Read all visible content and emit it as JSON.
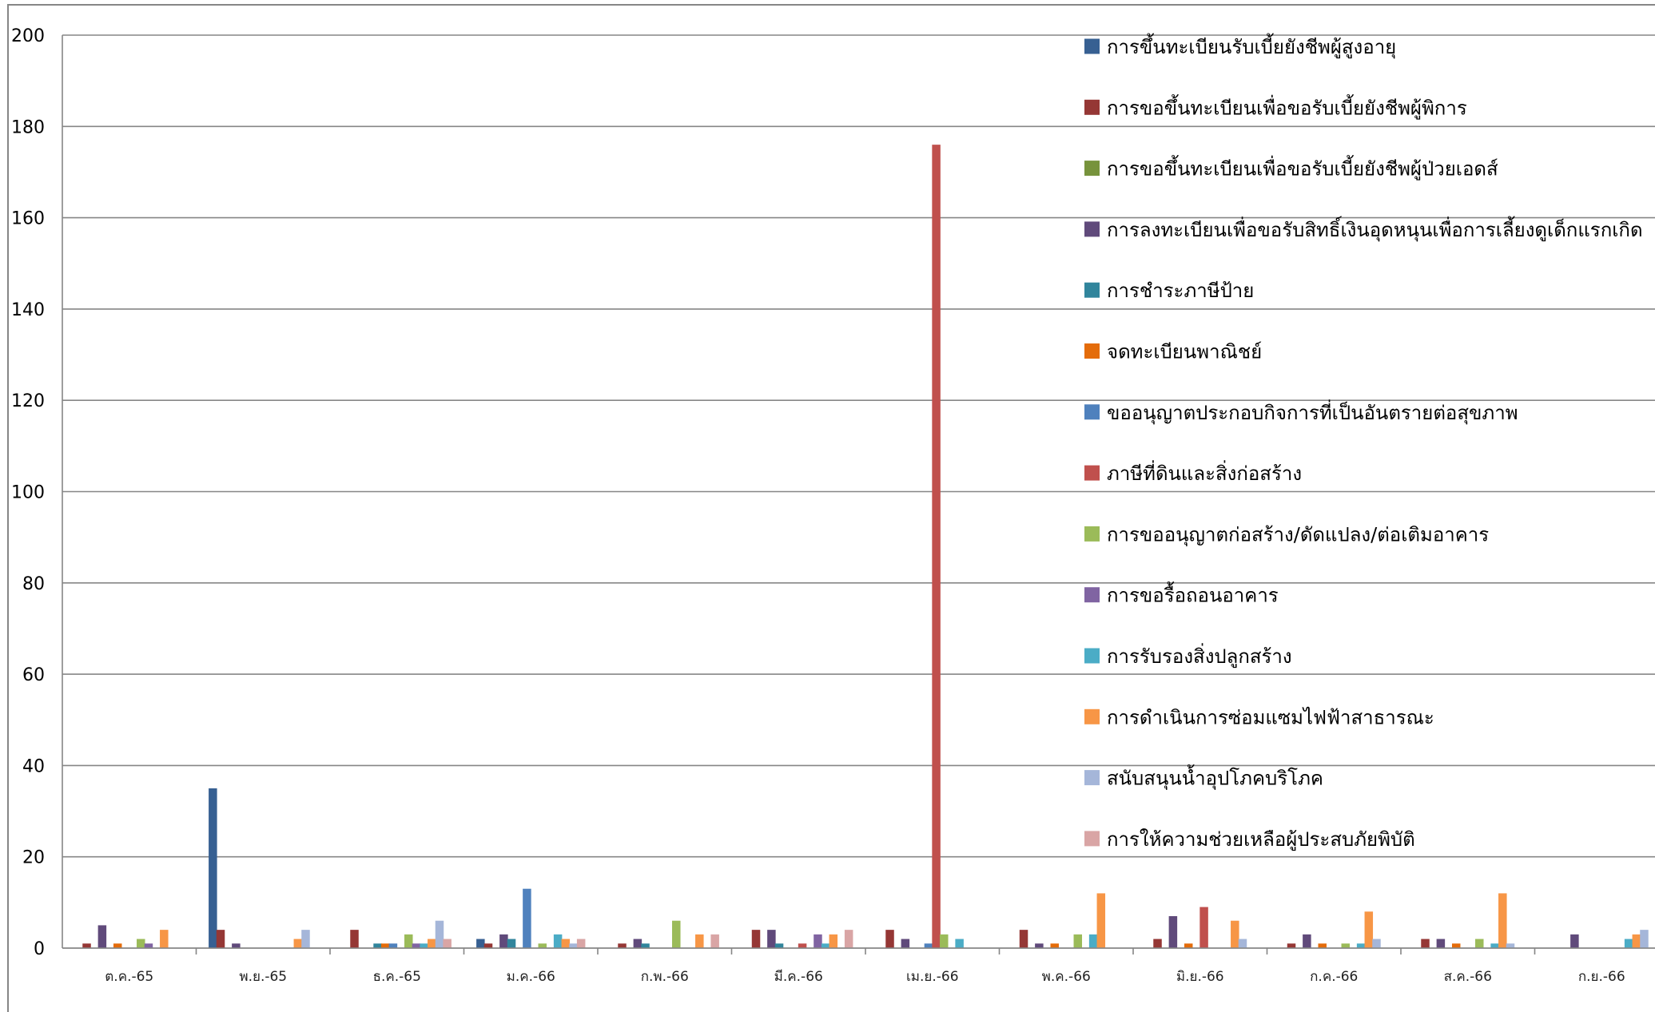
{
  "chart_data": {
    "type": "bar",
    "title": "",
    "xlabel": "",
    "ylabel": "",
    "ylim": [
      0,
      200
    ],
    "yticks": [
      0,
      20,
      40,
      60,
      80,
      100,
      120,
      140,
      160,
      180,
      200
    ],
    "grid": true,
    "legend_position": "right",
    "categories": [
      "ต.ค.-65",
      "พ.ย.-65",
      "ธ.ค.-65",
      "ม.ค.-66",
      "ก.พ.-66",
      "มี.ค.-66",
      "เม.ย.-66",
      "พ.ค.-66",
      "มิ.ย.-66",
      "ก.ค.-66",
      "ส.ค.-66",
      "ก.ย.-66"
    ],
    "series": [
      {
        "name": "การขึ้นทะเบียนรับเบี้ยยังชีพผู้สูงอายุ",
        "color": "#376092",
        "values": [
          0,
          35,
          0,
          2,
          0,
          0,
          0,
          0,
          0,
          0,
          0,
          0
        ]
      },
      {
        "name": "การขอขึ้นทะเบียนเพื่อขอรับเบี้ยยังชีพผู้พิการ",
        "color": "#953735",
        "values": [
          1,
          4,
          4,
          1,
          1,
          4,
          4,
          4,
          2,
          1,
          2,
          0
        ]
      },
      {
        "name": "การขอขึ้นทะเบียนเพื่อขอรับเบี้ยยังชีพผู้ป่วยเอดส์",
        "color": "#77933C",
        "values": [
          0,
          0,
          0,
          0,
          0,
          0,
          0,
          0,
          0,
          0,
          0,
          0
        ]
      },
      {
        "name": "การลงทะเบียนเพื่อขอรับสิทธิ์เงินอุดหนุนเพื่อการเลี้ยงดูเด็กแรกเกิด",
        "color": "#604A7B",
        "values": [
          5,
          1,
          0,
          3,
          2,
          4,
          2,
          1,
          7,
          3,
          2,
          3
        ]
      },
      {
        "name": "การชำระภาษีป้าย",
        "color": "#31859C",
        "values": [
          0,
          0,
          1,
          2,
          1,
          1,
          0,
          0,
          0,
          0,
          0,
          0
        ]
      },
      {
        "name": "จดทะเบียนพาณิชย์",
        "color": "#E46C0A",
        "values": [
          1,
          0,
          1,
          0,
          0,
          0,
          0,
          1,
          1,
          1,
          1,
          0
        ]
      },
      {
        "name": "ขออนุญาตประกอบกิจการที่เป็นอันตรายต่อสุขภาพ",
        "color": "#4F81BD",
        "values": [
          0,
          0,
          1,
          13,
          0,
          0,
          1,
          0,
          0,
          0,
          0,
          0
        ]
      },
      {
        "name": "ภาษีที่ดินและสิ่งก่อสร้าง",
        "color": "#C0504D",
        "values": [
          0,
          0,
          0,
          0,
          0,
          1,
          176,
          0,
          9,
          0,
          0,
          0
        ]
      },
      {
        "name": "การขออนุญาตก่อสร้าง/ดัดแปลง/ต่อเติมอาคาร",
        "color": "#9BBB59",
        "values": [
          2,
          0,
          3,
          1,
          6,
          0,
          3,
          3,
          0,
          1,
          2,
          0
        ]
      },
      {
        "name": "การขอรื้อถอนอาคาร",
        "color": "#8064A2",
        "values": [
          1,
          0,
          1,
          0,
          0,
          3,
          0,
          0,
          0,
          0,
          0,
          0
        ]
      },
      {
        "name": "การรับรองสิ่งปลูกสร้าง",
        "color": "#4BACC6",
        "values": [
          0,
          0,
          1,
          3,
          0,
          1,
          2,
          3,
          0,
          1,
          1,
          2
        ]
      },
      {
        "name": "การดำเนินการซ่อมแซมไฟฟ้าสาธารณะ",
        "color": "#F79646",
        "values": [
          4,
          2,
          2,
          2,
          3,
          3,
          0,
          12,
          6,
          8,
          12,
          3
        ]
      },
      {
        "name": "สนับสนุนน้ำอุปโภคบริโภค",
        "color": "#A5B6D9",
        "values": [
          0,
          4,
          6,
          1,
          0,
          0,
          0,
          0,
          2,
          2,
          1,
          4
        ]
      },
      {
        "name": "การให้ความช่วยเหลือผู้ประสบภัยพิบัติ",
        "color": "#D9A5A5",
        "values": [
          0,
          0,
          2,
          2,
          3,
          4,
          0,
          0,
          0,
          0,
          0,
          0
        ]
      }
    ]
  }
}
